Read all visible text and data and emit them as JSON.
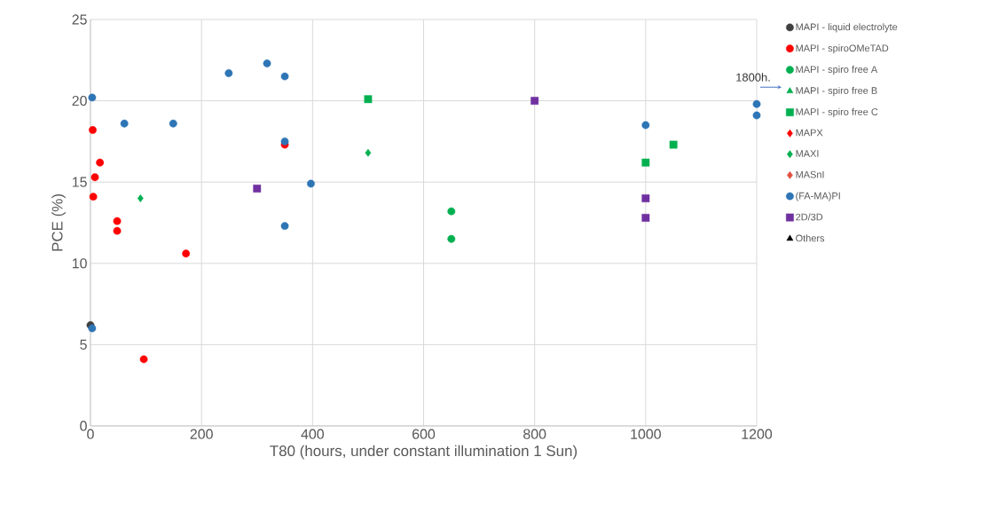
{
  "chart_data": {
    "type": "scatter",
    "xlabel": "T80 (hours, under constant illumination 1 Sun)",
    "ylabel": "PCE (%)",
    "xlim": [
      0,
      1200
    ],
    "ylim": [
      0,
      25
    ],
    "xticks": [
      0,
      200,
      400,
      600,
      800,
      1000,
      1200
    ],
    "yticks": [
      0,
      5,
      10,
      15,
      20,
      25
    ],
    "grid": true,
    "legend": "right",
    "annotations": [
      {
        "text": "1800h.",
        "x": 1200,
        "y": 19.8
      }
    ],
    "series": [
      {
        "name": "MAPI - liquid electrolyte",
        "color": "#404040",
        "marker": "circle",
        "x": [
          0
        ],
        "values": [
          6.2
        ]
      },
      {
        "name": "MAPI - spiroOMeTAD",
        "color": "#ff0000",
        "marker": "circle",
        "x": [
          4,
          17,
          8,
          5,
          48,
          48,
          172,
          96,
          350
        ],
        "values": [
          18.2,
          16.2,
          15.3,
          14.1,
          12.6,
          12.0,
          10.6,
          4.1,
          17.3
        ]
      },
      {
        "name": "MAPI - spiro free A",
        "color": "#00b050",
        "marker": "circle",
        "x": [
          650,
          650
        ],
        "values": [
          13.2,
          11.5
        ]
      },
      {
        "name": "MAPI - spiro free B",
        "color": "#00b050",
        "marker": "triangle"
      },
      {
        "name": "MAPI - spiro free C",
        "color": "#00b050",
        "marker": "square",
        "x": [
          500,
          1000,
          1050
        ],
        "values": [
          20.1,
          16.2,
          17.3
        ]
      },
      {
        "name": "MAPX",
        "color": "#ff0000",
        "marker": "diamond"
      },
      {
        "name": "MAXI",
        "color": "#00b050",
        "marker": "diamond",
        "x": [
          90,
          500
        ],
        "values": [
          14.0,
          16.8
        ]
      },
      {
        "name": "MASnI",
        "color": "#e05040",
        "marker": "diamond"
      },
      {
        "name": "(FA-MA)PI",
        "color": "#2e75b6",
        "marker": "circle",
        "x": [
          3,
          61,
          149,
          249,
          318,
          350,
          350,
          397,
          350,
          3,
          1000,
          1200,
          1200
        ],
        "values": [
          20.2,
          18.6,
          18.6,
          21.7,
          22.3,
          21.5,
          17.5,
          14.9,
          12.3,
          6.0,
          18.5,
          19.8,
          19.1
        ]
      },
      {
        "name": "2D/3D",
        "color": "#7030a0",
        "marker": "square",
        "x": [
          300,
          800,
          1000,
          1000
        ],
        "values": [
          14.6,
          20.0,
          14.0,
          12.8
        ]
      },
      {
        "name": "Others",
        "color": "#000000",
        "marker": "triangle"
      }
    ]
  }
}
